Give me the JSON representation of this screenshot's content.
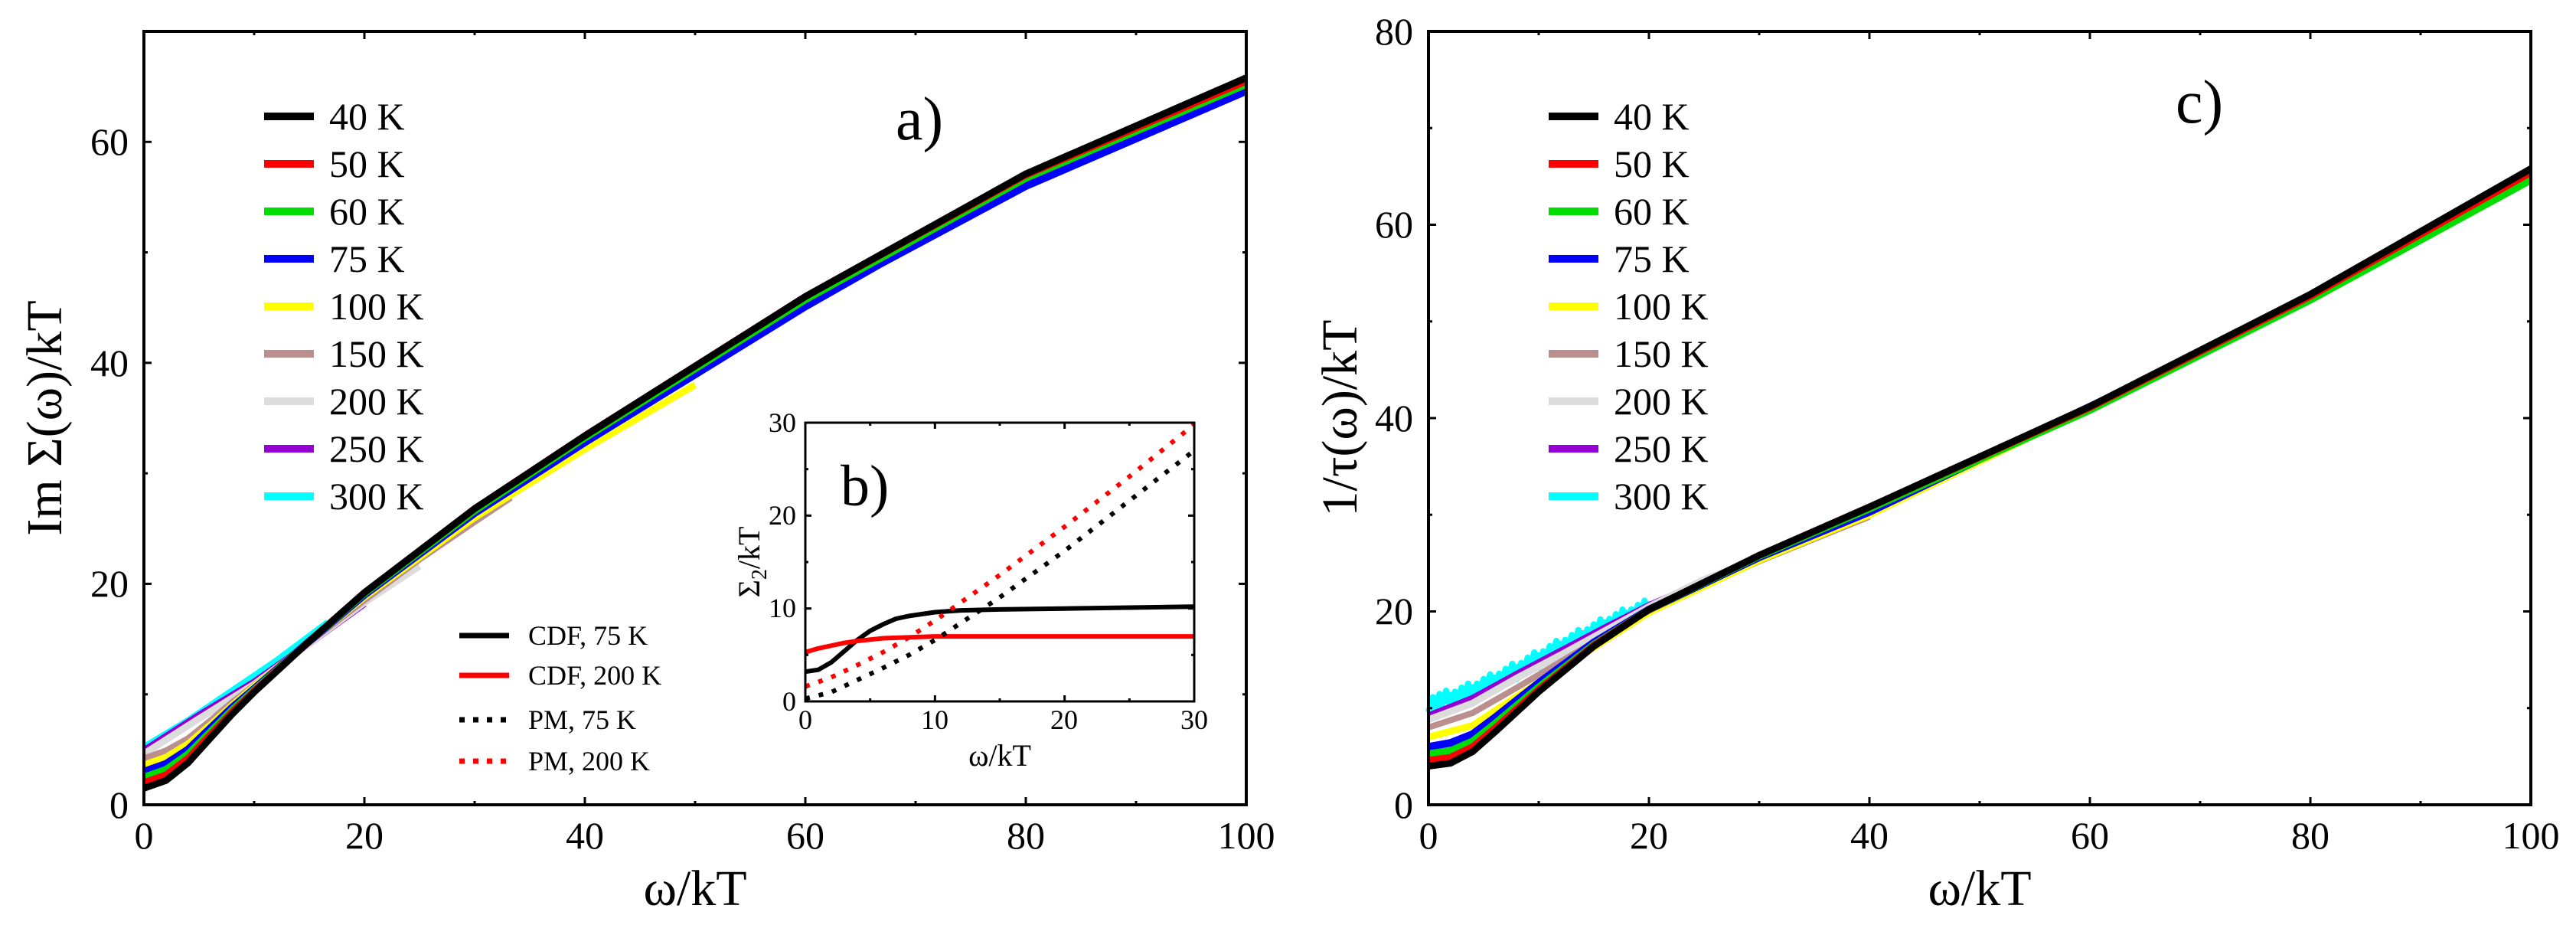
{
  "figure": {
    "panel_a": {
      "label": "a)",
      "xlabel": "ω/kT",
      "ylabel": "Im Σ(ω)/kT",
      "xticks": [
        "0",
        "20",
        "40",
        "60",
        "80",
        "100"
      ],
      "yticks": [
        "0",
        "20",
        "40",
        "60"
      ]
    },
    "panel_b": {
      "label": "b)",
      "xlabel": "ω/kT",
      "ylabel_main": "Σ",
      "ylabel_sub": "2",
      "ylabel_rest": "/kT",
      "xticks": [
        "0",
        "10",
        "20",
        "30"
      ],
      "yticks": [
        "0",
        "10",
        "20",
        "30"
      ]
    },
    "panel_c": {
      "label": "c)",
      "xlabel": "ω/kT",
      "ylabel": "1/τ(ω)/kT",
      "xticks": [
        "0",
        "20",
        "40",
        "60",
        "80",
        "100"
      ],
      "yticks": [
        "0",
        "20",
        "40",
        "60",
        "80"
      ]
    },
    "temperature_legend": [
      {
        "label": "40 K",
        "color": "#000000"
      },
      {
        "label": "50 K",
        "color": "#ff0000"
      },
      {
        "label": "60 K",
        "color": "#00dd00"
      },
      {
        "label": "75 K",
        "color": "#0000ff"
      },
      {
        "label": "100 K",
        "color": "#ffff00"
      },
      {
        "label": "150 K",
        "color": "#bc8f8f"
      },
      {
        "label": "200 K",
        "color": "#dcdcdc"
      },
      {
        "label": "250 K",
        "color": "#9400d3"
      },
      {
        "label": "300 K",
        "color": "#00ffff"
      }
    ],
    "inset_legend": [
      {
        "label": "CDF, 75 K",
        "color": "#000000",
        "style": "solid"
      },
      {
        "label": "CDF, 200 K",
        "color": "#ff0000",
        "style": "solid"
      },
      {
        "label": "PM, 75 K",
        "color": "#000000",
        "style": "dotted"
      },
      {
        "label": "PM, 200 K",
        "color": "#ff0000",
        "style": "dotted"
      }
    ]
  },
  "chart_data": [
    {
      "id": "a",
      "type": "line",
      "title": "a)",
      "xlabel": "ω/kT",
      "ylabel": "Im Σ(ω)/kT",
      "xlim": [
        0,
        100
      ],
      "ylim": [
        0,
        70
      ],
      "series": [
        {
          "name": "40 K",
          "color": "#000000",
          "width": 9,
          "x": [
            0,
            2,
            4,
            6,
            8,
            10,
            15,
            20,
            30,
            40,
            60,
            80,
            100
          ],
          "y": [
            1.5,
            2.2,
            3.8,
            6.0,
            8.2,
            10.2,
            14.8,
            19.2,
            26.8,
            33.4,
            46.0,
            57.1,
            65.8
          ]
        },
        {
          "name": "50 K",
          "color": "#ff0000",
          "width": 9,
          "x": [
            0,
            2,
            4,
            6,
            8,
            10,
            15,
            20,
            30,
            40,
            60,
            80,
            100
          ],
          "y": [
            2.0,
            2.7,
            4.2,
            6.3,
            8.4,
            10.3,
            14.8,
            19.2,
            26.8,
            33.4,
            46.0,
            57.0,
            65.5
          ]
        },
        {
          "name": "60 K",
          "color": "#00dd00",
          "width": 9,
          "x": [
            0,
            2,
            4,
            6,
            8,
            10,
            15,
            20,
            30,
            40,
            60,
            80,
            100
          ],
          "y": [
            2.5,
            3.2,
            4.6,
            6.6,
            8.6,
            10.4,
            14.8,
            19.1,
            26.6,
            33.2,
            45.7,
            56.7,
            65.2
          ]
        },
        {
          "name": "75 K",
          "color": "#0000ff",
          "width": 10,
          "x": [
            0,
            2,
            4,
            6,
            8,
            10,
            15,
            20,
            30,
            40,
            60,
            66.7,
            80,
            100
          ],
          "y": [
            3.0,
            3.7,
            5.0,
            6.9,
            8.8,
            10.5,
            14.8,
            19.0,
            26.4,
            32.8,
            45.1,
            48.9,
            56.0,
            64.6
          ]
        },
        {
          "name": "100 K",
          "color": "#ffff00",
          "width": 9,
          "x": [
            0,
            2,
            4,
            6,
            8,
            10,
            15,
            20,
            30,
            40,
            50
          ],
          "y": [
            3.6,
            4.3,
            5.5,
            7.2,
            9.0,
            10.7,
            14.8,
            18.8,
            26.0,
            32.2,
            38.0
          ]
        },
        {
          "name": "150 K",
          "color": "#bc8f8f",
          "width": 8,
          "x": [
            0,
            2,
            4,
            6,
            8,
            10,
            15,
            20,
            25,
            30,
            33.3
          ],
          "y": [
            4.2,
            4.9,
            6.0,
            7.6,
            9.3,
            10.8,
            14.7,
            18.5,
            22.2,
            25.6,
            27.8
          ]
        },
        {
          "name": "200 K",
          "color": "#dcdcdc",
          "width": 9,
          "x": [
            0,
            5,
            10,
            15,
            20,
            25
          ],
          "y": [
            4.6,
            7.8,
            10.9,
            14.6,
            18.3,
            21.6
          ]
        },
        {
          "name": "250 K",
          "color": "#9400d3",
          "width": 9,
          "x": [
            0,
            5,
            10,
            15,
            20
          ],
          "y": [
            4.9,
            8.1,
            11.1,
            14.6,
            18.2
          ]
        },
        {
          "name": "300 K",
          "color": "#00ffff",
          "width": 9,
          "x": [
            0,
            4,
            8,
            12,
            16.7
          ],
          "y": [
            5.2,
            7.6,
            10.3,
            13.0,
            16.5
          ]
        }
      ]
    },
    {
      "id": "b",
      "type": "line",
      "title": "b)",
      "xlabel": "ω/kT",
      "ylabel": "Σ2/kT",
      "xlim": [
        0,
        30
      ],
      "ylim": [
        0,
        30
      ],
      "series": [
        {
          "name": "CDF, 75 K",
          "color": "#000000",
          "style": "solid",
          "x": [
            0,
            1,
            2,
            3,
            4,
            5,
            6,
            7,
            8,
            10,
            12,
            15,
            20,
            25,
            30
          ],
          "y": [
            3.2,
            3.4,
            4.2,
            5.4,
            6.6,
            7.6,
            8.3,
            8.9,
            9.2,
            9.6,
            9.8,
            9.9,
            10.0,
            10.1,
            10.2
          ]
        },
        {
          "name": "CDF, 200 K",
          "color": "#ff0000",
          "style": "solid",
          "x": [
            0,
            1,
            2,
            3,
            4,
            6,
            10,
            20,
            30
          ],
          "y": [
            5.3,
            5.7,
            6.0,
            6.3,
            6.5,
            6.8,
            7.0,
            7.0,
            7.0
          ]
        },
        {
          "name": "PM, 75 K",
          "color": "#000000",
          "style": "dotted",
          "x": [
            0,
            2,
            4,
            6,
            8,
            10,
            15,
            20,
            25,
            30
          ],
          "y": [
            0.3,
            1.0,
            2.3,
            3.6,
            5.0,
            6.6,
            11.2,
            16.2,
            21.6,
            27.0
          ]
        },
        {
          "name": "PM, 200 K",
          "color": "#ff0000",
          "style": "dotted",
          "x": [
            0,
            2,
            4,
            6,
            8,
            10,
            15,
            20,
            25,
            30
          ],
          "y": [
            1.6,
            2.6,
            3.9,
            5.3,
            6.9,
            8.7,
            13.6,
            18.8,
            24.2,
            29.8
          ]
        }
      ]
    },
    {
      "id": "c",
      "type": "line",
      "title": "c)",
      "xlabel": "ω/kT",
      "ylabel": "1/τ(ω)/kT",
      "xlim": [
        0,
        100
      ],
      "ylim": [
        0,
        80
      ],
      "series": [
        {
          "name": "40 K",
          "color": "#000000",
          "width": 9,
          "x": [
            0,
            2,
            4,
            6,
            8,
            10,
            15,
            20,
            30,
            40,
            60,
            80,
            100
          ],
          "y": [
            4.0,
            4.3,
            5.5,
            7.5,
            9.6,
            11.7,
            16.4,
            20.2,
            25.8,
            30.8,
            41.2,
            52.8,
            65.8
          ]
        },
        {
          "name": "50 K",
          "color": "#ff0000",
          "width": 9,
          "x": [
            0,
            2,
            4,
            6,
            8,
            10,
            15,
            20,
            30,
            40,
            60,
            80,
            100
          ],
          "y": [
            4.6,
            4.9,
            6.0,
            7.9,
            9.9,
            11.9,
            16.5,
            20.2,
            25.8,
            30.8,
            41.1,
            52.6,
            65.4
          ]
        },
        {
          "name": "60 K",
          "color": "#00dd00",
          "width": 9,
          "x": [
            0,
            2,
            4,
            6,
            8,
            10,
            15,
            20,
            30,
            40,
            60,
            80,
            100
          ],
          "y": [
            5.3,
            5.6,
            6.6,
            8.4,
            10.3,
            12.2,
            16.6,
            20.2,
            25.7,
            30.6,
            40.8,
            52.2,
            64.6
          ]
        },
        {
          "name": "75 K",
          "color": "#0000ff",
          "width": 10,
          "x": [
            0,
            2,
            4,
            6,
            8,
            10,
            15,
            20,
            30,
            40,
            55.6,
            70,
            83.3
          ],
          "y": [
            6.0,
            6.4,
            7.3,
            9.0,
            10.8,
            12.6,
            16.8,
            20.2,
            25.6,
            30.3,
            38.8,
            46.6,
            54.7
          ]
        },
        {
          "name": "100 K",
          "color": "#ffff00",
          "width": 9,
          "x": [
            0,
            4,
            8,
            12,
            16,
            20,
            30,
            40,
            55.6
          ],
          "y": [
            7.0,
            8.2,
            11.2,
            14.1,
            17.0,
            19.9,
            25.3,
            30.0,
            38.6
          ]
        },
        {
          "name": "150 K",
          "color": "#bc8f8f",
          "width": 8,
          "x": [
            0,
            4,
            8,
            12,
            16,
            20,
            30,
            40
          ],
          "y": [
            8.0,
            9.5,
            12.1,
            14.8,
            17.5,
            20.2,
            25.2,
            29.8
          ]
        },
        {
          "name": "200 K",
          "color": "#dcdcdc",
          "width": 9,
          "x": [
            0,
            4,
            8,
            12,
            16,
            20,
            25,
            28
          ],
          "y": [
            8.8,
            10.5,
            13.1,
            15.5,
            18.0,
            20.5,
            23.3,
            24.6
          ]
        },
        {
          "name": "250 K",
          "color": "#9400d3",
          "width": 9,
          "x": [
            0,
            4,
            8,
            12,
            16,
            20,
            24
          ],
          "y": [
            9.2,
            11.0,
            13.5,
            15.9,
            18.3,
            20.6,
            22.6
          ]
        },
        {
          "name": "300 K",
          "color": "#00ffff",
          "width": 8,
          "noise": true,
          "x": [
            0,
            2,
            4,
            6,
            8,
            10,
            12,
            14,
            16,
            18,
            20
          ],
          "y": [
            10.5,
            11.0,
            11.8,
            12.8,
            13.9,
            15.1,
            16.3,
            17.4,
            18.5,
            19.5,
            20.4
          ]
        }
      ]
    }
  ]
}
